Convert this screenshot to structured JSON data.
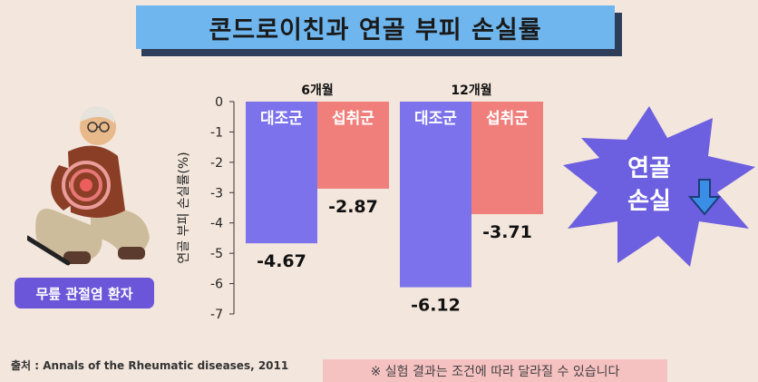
{
  "title": "콘드로이친과 연골 부피 손실률",
  "patient_label": "무릎 관절염 환자",
  "badge": {
    "line1": "연골",
    "line2": "손실"
  },
  "source": "출처 : Annals of the Rheumatic diseases, 2011",
  "note": "※ 실험 결과는 조건에 따라 달라질 수 있습니다",
  "colors": {
    "series1": "#7b72ec",
    "series2": "#f07f7c",
    "title_bg": "#6fb6ee",
    "badge": "#6c5fe0"
  },
  "chart_data": {
    "type": "bar",
    "categories": [
      "6개월",
      "12개월"
    ],
    "series": [
      {
        "name": "대조군",
        "values": [
          -4.67,
          -6.12
        ]
      },
      {
        "name": "섭취군",
        "values": [
          -2.87,
          -3.71
        ]
      }
    ],
    "value_labels": [
      [
        "-4.67",
        "-6.12"
      ],
      [
        "-2.87",
        "-3.71"
      ]
    ],
    "ylabel": "연골 부피 손실률(%)",
    "ylim": [
      -7,
      0
    ],
    "yticks": [
      0,
      -1,
      -2,
      -3,
      -4,
      -5,
      -6,
      -7
    ],
    "grid": false,
    "legend": "none"
  }
}
